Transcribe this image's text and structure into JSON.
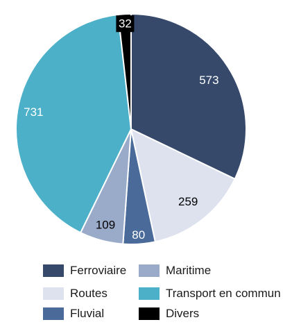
{
  "chart_data": {
    "type": "pie",
    "title": "",
    "start": "top",
    "direction": "clockwise",
    "categories": [
      "Ferroviaire",
      "Routes",
      "Fluvial",
      "Maritime",
      "Transport en commun",
      "Divers"
    ],
    "values": [
      573,
      259,
      80,
      109,
      731,
      32
    ],
    "colors": [
      "#36496b",
      "#dde2ee",
      "#4a6b9a",
      "#9aabc9",
      "#4bb0c8",
      "#000000"
    ],
    "label_colors": [
      "#ffffff",
      "#000000",
      "#ffffff",
      "#000000",
      "#ffffff",
      "#ffffff"
    ],
    "legend": {
      "placement": "bottom",
      "columns": 2,
      "order": [
        "Ferroviaire",
        "Maritime",
        "Routes",
        "Transport en commun",
        "Fluvial",
        "Divers"
      ]
    }
  }
}
